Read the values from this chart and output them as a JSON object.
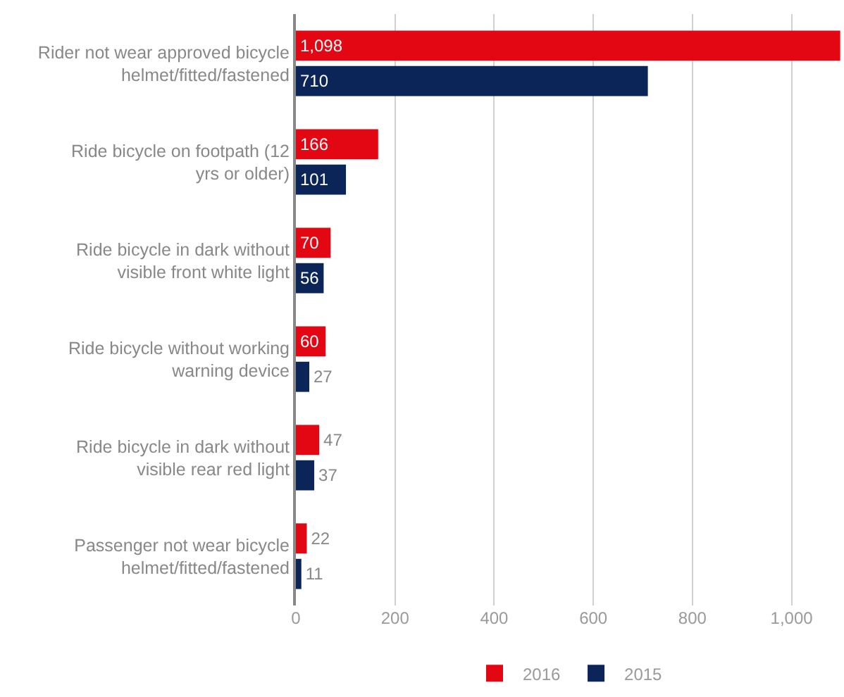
{
  "chart_data": {
    "type": "bar",
    "orientation": "horizontal",
    "categories": [
      "Rider not wear approved bicycle helmet/fitted/fastened",
      "Ride bicycle on footpath (12 yrs or older)",
      "Ride bicycle in dark without visible front white light",
      "Ride bicycle without working warning device",
      "Ride bicycle in dark without visible rear red light",
      "Passenger not wear bicycle helmet/fitted/fastened"
    ],
    "series": [
      {
        "name": "2016",
        "color": "#e30613",
        "values": [
          1098,
          166,
          70,
          60,
          47,
          22
        ],
        "value_labels": [
          "1,098",
          "166",
          "70",
          "60",
          "47",
          "22"
        ]
      },
      {
        "name": "2015",
        "color": "#0b2559",
        "values": [
          710,
          101,
          56,
          27,
          37,
          11
        ],
        "value_labels": [
          "710",
          "101",
          "56",
          "27",
          "37",
          "11"
        ]
      }
    ],
    "xlim": [
      0,
      1100
    ],
    "xticks": [
      0,
      200,
      400,
      600,
      800,
      {
        "value": 1000,
        "label": "1,000"
      }
    ],
    "grid": "x",
    "legend": "bottom"
  }
}
